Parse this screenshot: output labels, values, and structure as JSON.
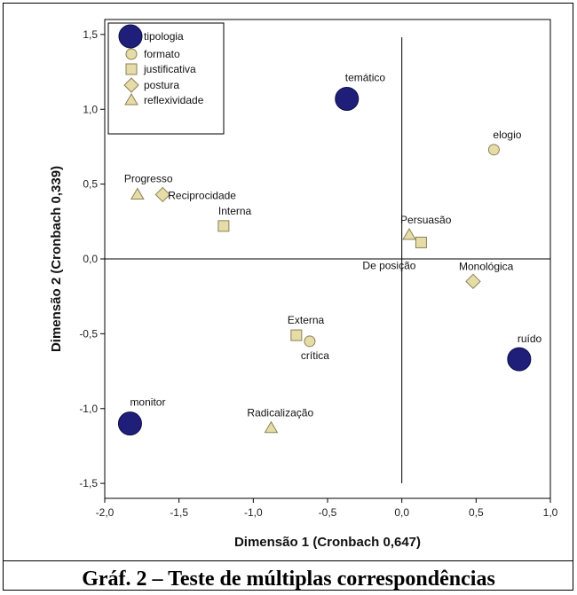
{
  "caption": "Gráf. 2 – Teste de múltiplas correspondências",
  "chart_data": {
    "type": "scatter",
    "xlabel": "Dimensão 1 (Cronbach 0,647)",
    "ylabel": "Dimensão 2 (Cronbach 0,339)",
    "xlim": [
      -2.0,
      1.0
    ],
    "ylim": [
      -1.6,
      1.6
    ],
    "xticks": [
      -2.0,
      -1.5,
      -1.0,
      -0.5,
      0.0,
      0.5,
      1.0
    ],
    "xtick_labels": [
      "-2,0",
      "-1,5",
      "-1,0",
      "-0,5",
      "0,0",
      "0,5",
      "1,0"
    ],
    "yticks": [
      -1.5,
      -1.0,
      -0.5,
      0.0,
      0.5,
      1.0,
      1.5
    ],
    "ytick_labels": [
      "-1,5",
      "-1,0",
      "-0,5",
      "0,0",
      "0,5",
      "1,0",
      "1,5"
    ],
    "grid": false,
    "reference_lines": {
      "x": 0.0,
      "y": 0.0
    },
    "legend_position": "top-left",
    "colors": {
      "tipologia": "#1f1f7a",
      "other": "#e5dca8",
      "outline": "#8a8157"
    },
    "series": [
      {
        "name": "tipologia",
        "marker": "large-circle",
        "points": [
          {
            "label": "temático",
            "x": -0.37,
            "y": 1.07
          },
          {
            "label": "ruído",
            "x": 0.79,
            "y": -0.67
          },
          {
            "label": "monitor",
            "x": -1.83,
            "y": -1.1
          }
        ]
      },
      {
        "name": "formato",
        "marker": "circle",
        "points": [
          {
            "label": "elogio",
            "x": 0.62,
            "y": 0.73
          },
          {
            "label": "crítica",
            "x": -0.62,
            "y": -0.55
          }
        ]
      },
      {
        "name": "justificativa",
        "marker": "square",
        "points": [
          {
            "label": "Interna",
            "x": -1.2,
            "y": 0.22
          },
          {
            "label": "De posição",
            "x": 0.13,
            "y": 0.11
          },
          {
            "label": "Externa",
            "x": -0.71,
            "y": -0.51
          }
        ]
      },
      {
        "name": "postura",
        "marker": "diamond",
        "points": [
          {
            "label": "Reciprocidade",
            "x": -1.61,
            "y": 0.43
          },
          {
            "label": "Monológica",
            "x": 0.48,
            "y": -0.15
          }
        ]
      },
      {
        "name": "reflexividade",
        "marker": "triangle",
        "points": [
          {
            "label": "Progresso",
            "x": -1.78,
            "y": 0.43
          },
          {
            "label": "Persuasão",
            "x": 0.05,
            "y": 0.16
          },
          {
            "label": "Radicalização",
            "x": -0.88,
            "y": -1.13
          }
        ]
      }
    ]
  }
}
